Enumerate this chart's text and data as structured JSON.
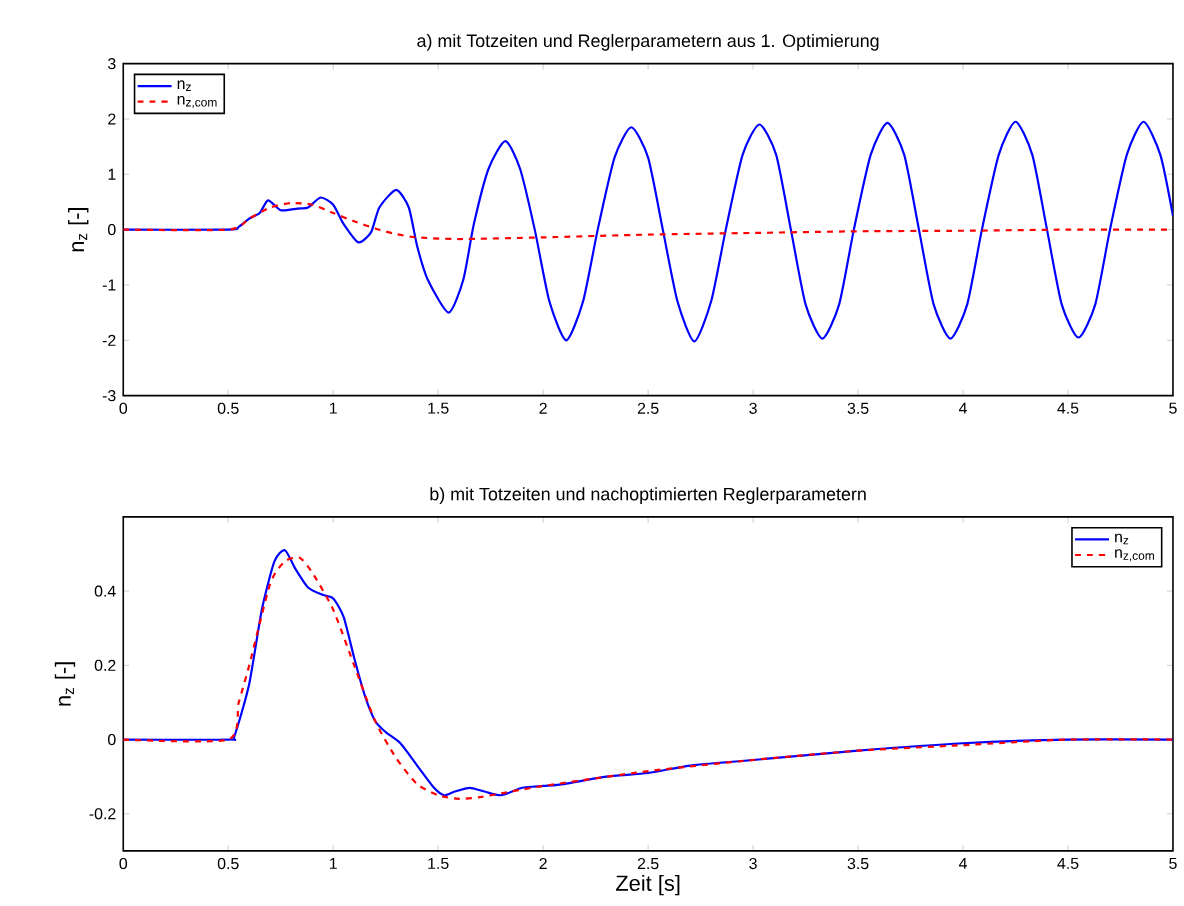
{
  "chart_data": [
    {
      "type": "line",
      "title": "a) mit Totzeiten und Reglerparametern aus 1. Optimierung",
      "ylabel": "n$_{z}$ [-]",
      "xlim": [
        0,
        5
      ],
      "ylim": [
        -3,
        3
      ],
      "xticks": [
        0,
        0.5,
        1,
        1.5,
        2,
        2.5,
        3,
        3.5,
        4,
        4.5,
        5
      ],
      "yticks": [
        -3,
        -2,
        -1,
        0,
        1,
        2,
        3
      ],
      "grid": false,
      "legend": "top left",
      "marker": "none",
      "series": [
        {
          "name": "n$_{z}$",
          "color": "#0000ff",
          "line_style": "solid",
          "x": [
            0,
            0.5,
            0.55,
            0.6,
            0.65,
            0.69,
            0.75,
            0.83,
            0.88,
            0.94,
            1.0,
            1.05,
            1.12,
            1.18,
            1.22,
            1.3,
            1.36,
            1.4,
            1.45,
            1.55,
            1.62,
            1.67,
            1.74,
            1.82,
            1.89,
            1.96,
            2.03,
            2.11,
            2.19,
            2.26,
            2.34,
            2.42,
            2.5,
            2.57,
            2.64,
            2.72,
            2.8,
            2.87,
            2.95,
            3.03,
            3.11,
            3.18,
            3.25,
            3.33,
            3.41,
            3.48,
            3.56,
            3.64,
            3.72,
            3.79,
            3.86,
            3.94,
            4.02,
            4.09,
            4.17,
            4.25,
            4.33,
            4.4,
            4.47,
            4.55,
            4.63,
            4.7,
            4.78,
            4.86,
            4.94,
            5.0
          ],
          "values": [
            0,
            0,
            0.05,
            0.2,
            0.3,
            0.53,
            0.35,
            0.38,
            0.4,
            0.58,
            0.45,
            0.1,
            -0.23,
            -0.05,
            0.4,
            0.72,
            0.4,
            -0.3,
            -0.9,
            -1.5,
            -0.9,
            0.1,
            1.1,
            1.6,
            1.1,
            0,
            -1.3,
            -2.0,
            -1.3,
            0,
            1.3,
            1.85,
            1.3,
            0,
            -1.3,
            -2.02,
            -1.3,
            0,
            1.35,
            1.9,
            1.35,
            0,
            -1.35,
            -1.97,
            -1.35,
            0,
            1.35,
            1.93,
            1.35,
            0,
            -1.35,
            -1.97,
            -1.35,
            0,
            1.35,
            1.95,
            1.35,
            0,
            -1.35,
            -1.95,
            -1.35,
            0,
            1.35,
            1.95,
            1.35,
            0.25
          ]
        },
        {
          "name": "n$_{z,com}$",
          "color": "#ff0000",
          "line_style": "dashed",
          "x": [
            0,
            0.5,
            0.6,
            0.7,
            0.8,
            0.9,
            1.0,
            1.1,
            1.2,
            1.3,
            1.4,
            1.6,
            2.0,
            2.5,
            3.0,
            3.5,
            4.0,
            4.5,
            5.0
          ],
          "values": [
            0,
            0,
            0.2,
            0.4,
            0.48,
            0.45,
            0.3,
            0.15,
            0.02,
            -0.08,
            -0.14,
            -0.17,
            -0.14,
            -0.09,
            -0.06,
            -0.03,
            -0.02,
            0,
            0
          ]
        }
      ]
    },
    {
      "type": "line",
      "title": "b) mit Totzeiten und nachoptimierten Reglerparametern",
      "xlabel": "Zeit [s]",
      "ylabel": "n$_{z}$ [-]",
      "xlim": [
        0,
        5
      ],
      "ylim": [
        -0.3,
        0.6
      ],
      "xticks": [
        0,
        0.5,
        1,
        1.5,
        2,
        2.5,
        3,
        3.5,
        4,
        4.5,
        5
      ],
      "yticks": [
        -0.2,
        0,
        0.2,
        0.4
      ],
      "grid": false,
      "legend": "top right",
      "marker": "none",
      "series": [
        {
          "name": "n$_{z}$",
          "color": "#0000ff",
          "line_style": "solid",
          "x": [
            0,
            0.5,
            0.53,
            0.6,
            0.66,
            0.72,
            0.77,
            0.82,
            0.88,
            0.95,
            1.0,
            1.05,
            1.1,
            1.15,
            1.2,
            1.25,
            1.32,
            1.4,
            1.48,
            1.53,
            1.58,
            1.65,
            1.72,
            1.8,
            1.9,
            2.0,
            2.1,
            2.3,
            2.5,
            2.7,
            3.0,
            3.5,
            4.0,
            4.5,
            5.0
          ],
          "values": [
            0,
            0,
            0.01,
            0.15,
            0.35,
            0.48,
            0.51,
            0.46,
            0.41,
            0.39,
            0.38,
            0.33,
            0.22,
            0.12,
            0.05,
            0.02,
            -0.01,
            -0.07,
            -0.13,
            -0.15,
            -0.14,
            -0.13,
            -0.14,
            -0.15,
            -0.13,
            -0.125,
            -0.12,
            -0.1,
            -0.09,
            -0.07,
            -0.055,
            -0.03,
            -0.01,
            0,
            0
          ]
        },
        {
          "name": "n$_{z,com}$",
          "color": "#ff0000",
          "line_style": "dashed",
          "x": [
            0,
            0.5,
            0.55,
            0.6,
            0.7,
            0.77,
            0.84,
            0.9,
            1.0,
            1.1,
            1.2,
            1.3,
            1.4,
            1.5,
            1.6,
            1.7,
            1.8,
            2.0,
            2.5,
            3.0,
            3.5,
            4.0,
            4.5,
            5.0
          ],
          "values": [
            0,
            0,
            0.1,
            0.2,
            0.42,
            0.48,
            0.49,
            0.45,
            0.35,
            0.2,
            0.05,
            -0.05,
            -0.12,
            -0.15,
            -0.16,
            -0.155,
            -0.145,
            -0.125,
            -0.085,
            -0.055,
            -0.03,
            -0.015,
            0,
            0
          ]
        }
      ]
    }
  ]
}
